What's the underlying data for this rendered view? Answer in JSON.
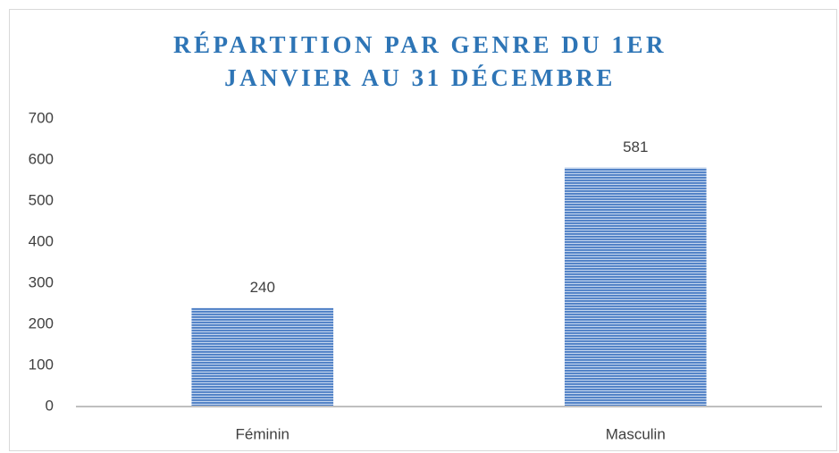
{
  "chart_data": {
    "type": "bar",
    "title": "RÉPARTITION PAR GENRE DU 1ER JANVIER AU 31 DÉCEMBRE",
    "categories": [
      "Féminin",
      "Masculin"
    ],
    "values": [
      240,
      581
    ],
    "color": "#4a7cc4",
    "ylim": [
      0,
      700
    ],
    "yticks": [
      0,
      100,
      200,
      300,
      400,
      500,
      600,
      700
    ],
    "grid": false
  }
}
